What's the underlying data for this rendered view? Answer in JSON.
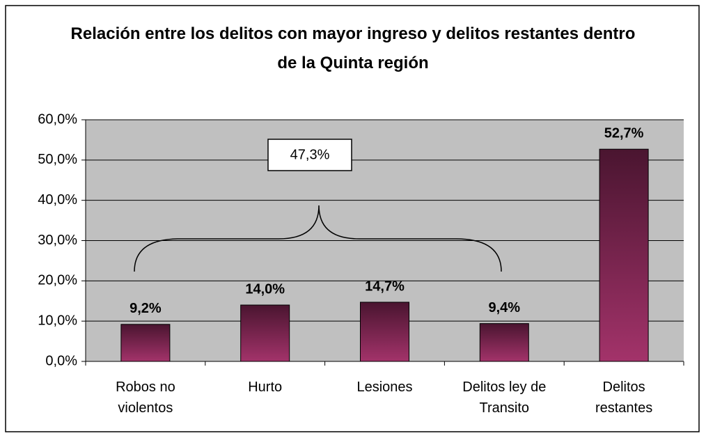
{
  "chart_data": {
    "type": "bar",
    "title": "Relación entre los delitos con mayor ingreso y delitos restantes dentro de la Quinta región",
    "categories": [
      "Robos no violentos",
      "Hurto",
      "Lesiones",
      "Delitos ley de Transito",
      "Delitos restantes"
    ],
    "values": [
      9.2,
      14.0,
      14.7,
      9.4,
      52.7
    ],
    "value_labels": [
      "9,2%",
      "14,0%",
      "14,7%",
      "9,4%",
      "52,7%"
    ],
    "annotation": "47,3%",
    "color": "#8a2a58",
    "ylim": [
      0,
      60
    ],
    "yticks": [
      {
        "value": 0,
        "label": "0,0%"
      },
      {
        "value": 10,
        "label": "10,0%"
      },
      {
        "value": 20,
        "label": "20,0%"
      },
      {
        "value": 30,
        "label": "30,0%"
      },
      {
        "value": 40,
        "label": "40,0%"
      },
      {
        "value": 50,
        "label": "50,0%"
      },
      {
        "value": 60,
        "label": "60,0%"
      }
    ],
    "grid": true
  }
}
